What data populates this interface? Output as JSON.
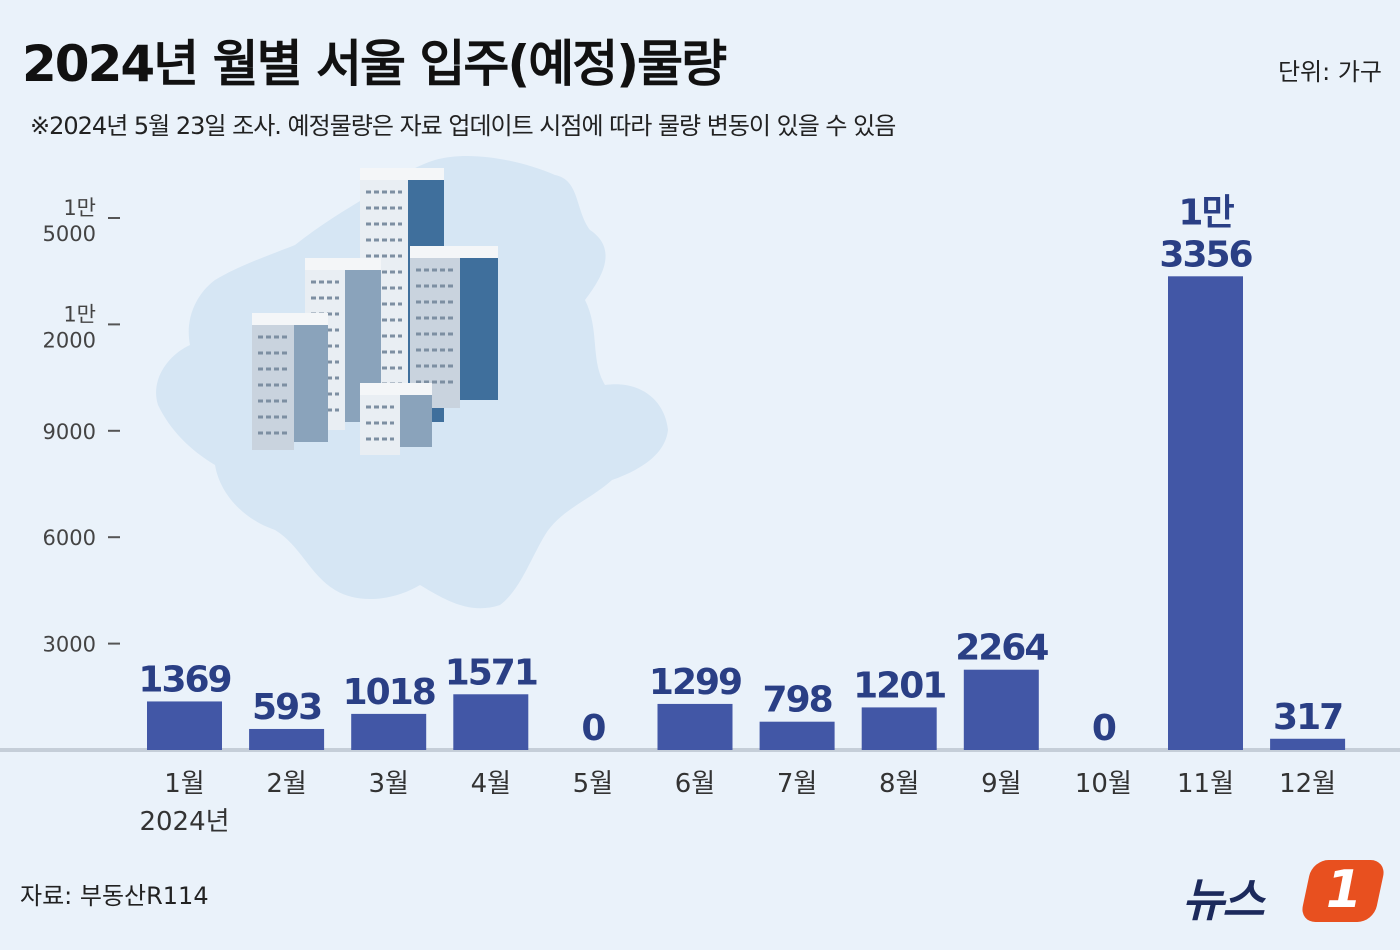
{
  "header": {
    "title": "2024년 월별 서울 입주(예정)물량",
    "unit": "단위: 가구",
    "subtitle": "※2024년 5월 23일 조사. 예정물량은 자료 업데이트 시점에 따라 물량 변동이 있을 수 있음"
  },
  "footer": {
    "source": "자료: 부동산R114",
    "logo_text": "뉴스",
    "logo_mark": "1"
  },
  "colors": {
    "bar": "#4257a6",
    "value_label": "#2a3f85",
    "background": "#eaf2fa",
    "map": "#d6e6f4",
    "logo_badge": "#e8501f"
  },
  "chart_data": {
    "type": "bar",
    "categories": [
      "1월",
      "2월",
      "3월",
      "4월",
      "5월",
      "6월",
      "7월",
      "8월",
      "9월",
      "10월",
      "11월",
      "12월"
    ],
    "year_label": "2024년",
    "values": [
      1369,
      593,
      1018,
      1571,
      0,
      1299,
      798,
      1201,
      2264,
      0,
      13356,
      317
    ],
    "value_labels": [
      "1369",
      "593",
      "1018",
      "1571",
      "0",
      "1299",
      "798",
      "1201",
      "2264",
      "0",
      "1만\n3356",
      "317"
    ],
    "y_ticks": [
      {
        "value": 3000,
        "label": "3000"
      },
      {
        "value": 6000,
        "label": "6000"
      },
      {
        "value": 9000,
        "label": "9000"
      },
      {
        "value": 12000,
        "label": "1만\n2000"
      },
      {
        "value": 15000,
        "label": "1만\n5000"
      }
    ],
    "ylim": [
      0,
      15000
    ],
    "grid": false,
    "xlabel": "",
    "ylabel": ""
  }
}
